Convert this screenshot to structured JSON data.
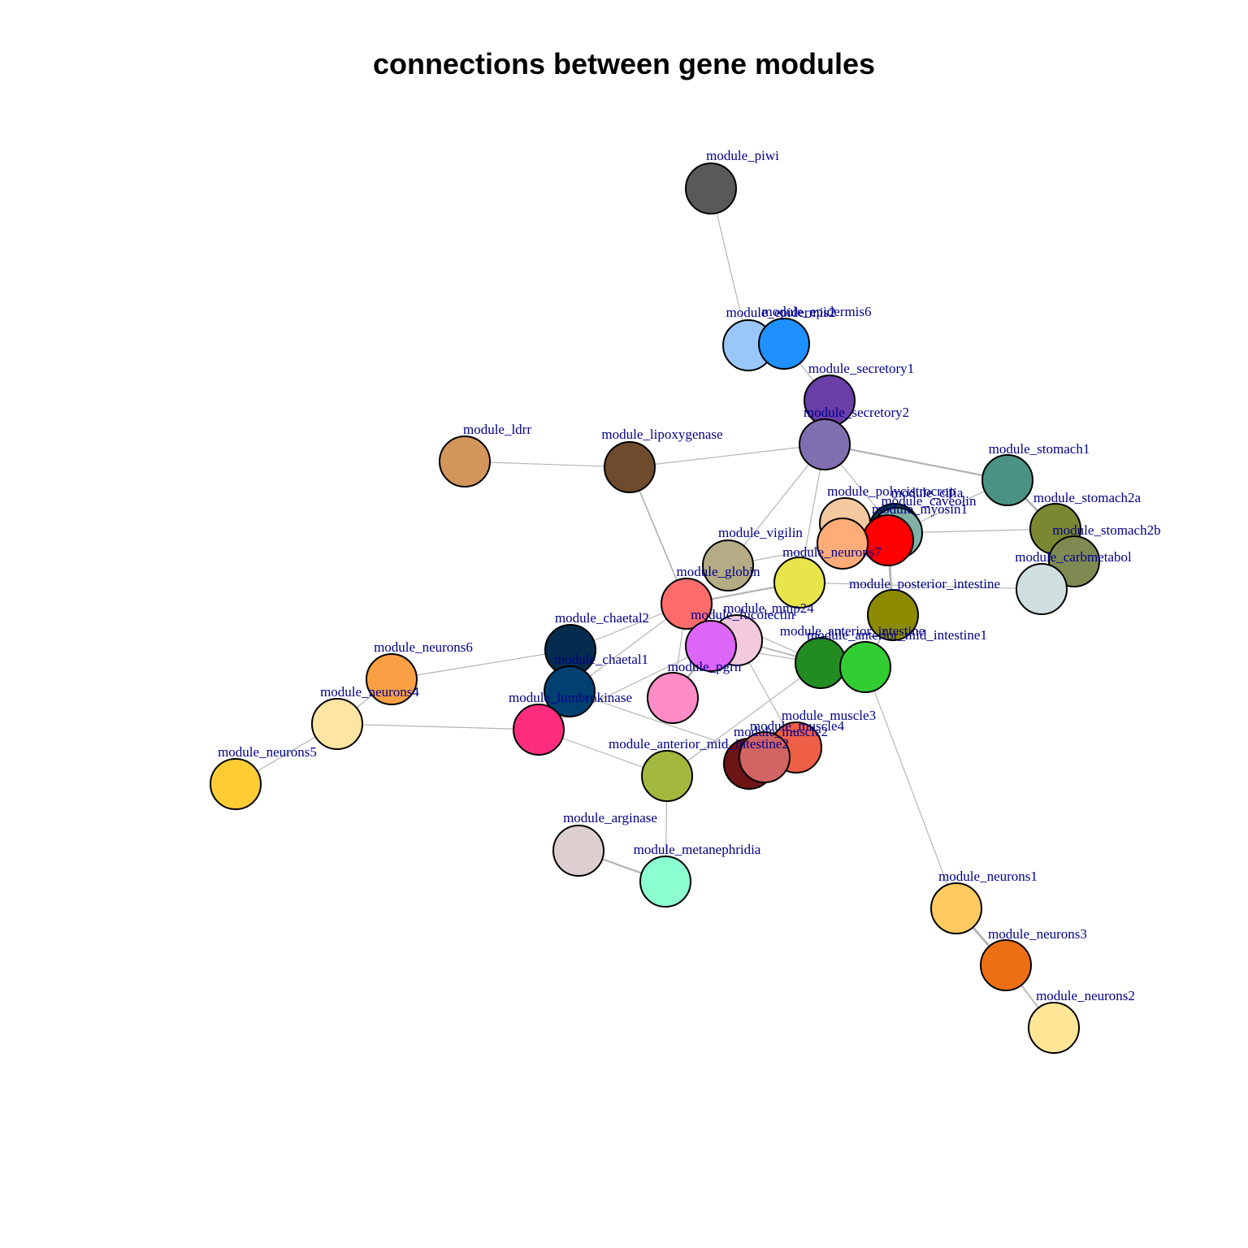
{
  "title": "connections between gene modules",
  "nodes": [
    {
      "id": "piwi",
      "label": "module_piwi",
      "color": "#595959"
    },
    {
      "id": "epidermis2",
      "label": "module_epidermis2",
      "color": "#99c7f9"
    },
    {
      "id": "epidermis6",
      "label": "module_epidermis6",
      "color": "#1e90ff"
    },
    {
      "id": "secretory1",
      "label": "module_secretory1",
      "color": "#6a3fa8"
    },
    {
      "id": "secretory2",
      "label": "module_secretory2",
      "color": "#7f6fb0"
    },
    {
      "id": "ldrr",
      "label": "module_ldrr",
      "color": "#d2955a"
    },
    {
      "id": "lipoxygenase",
      "label": "module_lipoxygenase",
      "color": "#6e4b2c"
    },
    {
      "id": "stomach1",
      "label": "module_stomach1",
      "color": "#4a9283"
    },
    {
      "id": "stomach2a",
      "label": "module_stomach2a",
      "color": "#7b8731"
    },
    {
      "id": "stomach2b",
      "label": "module_stomach2b",
      "color": "#7f8a52"
    },
    {
      "id": "carbmetabol",
      "label": "module_carbmetabol",
      "color": "#d0dfe0"
    },
    {
      "id": "polycistrocrop",
      "label": "module_polycistrocrop",
      "color": "#f6c8a0"
    },
    {
      "id": "cilia",
      "label": "module_cilia",
      "color": "#0a3a4d"
    },
    {
      "id": "caveolin",
      "label": "module_caveolin",
      "color": "#80b0a6"
    },
    {
      "id": "myosin1",
      "label": "module_myosin1",
      "color": "#ff0000"
    },
    {
      "id": "neurons7",
      "label": "module_neurons7",
      "color": "#ffac78"
    },
    {
      "id": "vigilin",
      "label": "module_vigilin",
      "color": "#b5ab85"
    },
    {
      "id": "posterior_intestine",
      "label": "module_posterior_intestine",
      "color": "#e8e54a"
    },
    {
      "id": "globin",
      "label": "module_globin",
      "color": "#fd6b6b"
    },
    {
      "id": "mmp24",
      "label": "module_mmp24",
      "color": "#f2cadb"
    },
    {
      "id": "fucolectin",
      "label": "module_fucolectin",
      "color": "#dd66f8"
    },
    {
      "id": "olive_int",
      "label": "",
      "color": "#8c8a00"
    },
    {
      "id": "anterior_intestine",
      "label": "module_anterior_intestine",
      "color": "#228b22"
    },
    {
      "id": "anterior_mid_intestine1",
      "label": "module_anterior_mid_intestine1",
      "color": "#32cd32"
    },
    {
      "id": "chaetal2",
      "label": "module_chaetal2",
      "color": "#052c4e"
    },
    {
      "id": "chaetal1",
      "label": "module_chaetal1",
      "color": "#014071"
    },
    {
      "id": "pgrn",
      "label": "module_pgrn",
      "color": "#ff8cc6"
    },
    {
      "id": "lumbrokinase",
      "label": "module_lumbrokinase",
      "color": "#fc2d7f"
    },
    {
      "id": "neurons6",
      "label": "module_neurons6",
      "color": "#f9a044"
    },
    {
      "id": "neurons4",
      "label": "module_neurons4",
      "color": "#ffe5a2"
    },
    {
      "id": "neurons5",
      "label": "module_neurons5",
      "color": "#ffcd33"
    },
    {
      "id": "muscle3",
      "label": "module_muscle3",
      "color": "#ef5f45"
    },
    {
      "id": "muscle4",
      "label": "module_muscle4",
      "color": "#6d1515"
    },
    {
      "id": "muscle2",
      "label": "module_muscle2",
      "color": "#d26464"
    },
    {
      "id": "anterior_mid_intestine2",
      "label": "module_anterior_mid_intestine2",
      "color": "#a2b73d"
    },
    {
      "id": "arginase",
      "label": "module_arginase",
      "color": "#ddcfcf"
    },
    {
      "id": "metanephridia",
      "label": "module_metanephridia",
      "color": "#8cffd1"
    },
    {
      "id": "neurons1",
      "label": "module_neurons1",
      "color": "#ffca60"
    },
    {
      "id": "neurons3",
      "label": "module_neurons3",
      "color": "#ed6f14"
    },
    {
      "id": "neurons2",
      "label": "module_neurons2",
      "color": "#ffe697"
    }
  ],
  "edges": [
    {
      "source": "piwi",
      "target": "epidermis2",
      "weight": 1
    },
    {
      "source": "epidermis2",
      "target": "epidermis6",
      "weight": 3
    },
    {
      "source": "epidermis6",
      "target": "secretory1",
      "weight": 1
    },
    {
      "source": "secretory1",
      "target": "secretory2",
      "weight": 2
    },
    {
      "source": "ldrr",
      "target": "lipoxygenase",
      "weight": 1
    },
    {
      "source": "lipoxygenase",
      "target": "secretory2",
      "weight": 1
    },
    {
      "source": "lipoxygenase",
      "target": "globin",
      "weight": 2
    },
    {
      "source": "secretory2",
      "target": "stomach1",
      "weight": 3
    },
    {
      "source": "secretory2",
      "target": "vigilin",
      "weight": 1
    },
    {
      "source": "secretory2",
      "target": "caveolin",
      "weight": 1
    },
    {
      "source": "secretory2",
      "target": "posterior_intestine",
      "weight": 1
    },
    {
      "source": "stomach1",
      "target": "stomach2a",
      "weight": 4
    },
    {
      "source": "stomach2a",
      "target": "stomach2b",
      "weight": 2
    },
    {
      "source": "stomach1",
      "target": "caveolin",
      "weight": 1
    },
    {
      "source": "caveolin",
      "target": "stomach2a",
      "weight": 1
    },
    {
      "source": "myosin1",
      "target": "olive_int",
      "weight": 4
    },
    {
      "source": "olive_int",
      "target": "anterior_mid_intestine1",
      "weight": 2
    },
    {
      "source": "posterior_intestine",
      "target": "carbmetabol",
      "weight": 1
    },
    {
      "source": "posterior_intestine",
      "target": "globin",
      "weight": 3
    },
    {
      "source": "vigilin",
      "target": "neurons7",
      "weight": 1
    },
    {
      "source": "globin",
      "target": "pgrn",
      "weight": 1
    },
    {
      "source": "globin",
      "target": "chaetal2",
      "weight": 1
    },
    {
      "source": "globin",
      "target": "anterior_intestine",
      "weight": 1
    },
    {
      "source": "mmp24",
      "target": "anterior_intestine",
      "weight": 2
    },
    {
      "source": "fucolectin",
      "target": "anterior_intestine",
      "weight": 1
    },
    {
      "source": "fucolectin",
      "target": "pgrn",
      "weight": 4
    },
    {
      "source": "fucolectin",
      "target": "lumbrokinase",
      "weight": 1
    },
    {
      "source": "mmp24",
      "target": "muscle3",
      "weight": 1
    },
    {
      "source": "anterior_intestine",
      "target": "anterior_mid_intestine1",
      "weight": 3
    },
    {
      "source": "anterior_intestine",
      "target": "anterior_mid_intestine2",
      "weight": 1
    },
    {
      "source": "anterior_mid_intestine1",
      "target": "neurons1",
      "weight": 1
    },
    {
      "source": "chaetal2",
      "target": "chaetal1",
      "weight": 2
    },
    {
      "source": "chaetal1",
      "target": "muscle2",
      "weight": 1
    },
    {
      "source": "chaetal1",
      "target": "globin",
      "weight": 1
    },
    {
      "source": "neurons6",
      "target": "chaetal2",
      "weight": 1
    },
    {
      "source": "neurons6",
      "target": "neurons4",
      "weight": 1
    },
    {
      "source": "neurons4",
      "target": "neurons5",
      "weight": 1
    },
    {
      "source": "neurons4",
      "target": "lumbrokinase",
      "weight": 1
    },
    {
      "source": "lumbrokinase",
      "target": "anterior_mid_intestine2",
      "weight": 1
    },
    {
      "source": "muscle3",
      "target": "muscle4",
      "weight": 2
    },
    {
      "source": "muscle4",
      "target": "muscle2",
      "weight": 3
    },
    {
      "source": "anterior_mid_intestine2",
      "target": "metanephridia",
      "weight": 1
    },
    {
      "source": "arginase",
      "target": "metanephridia",
      "weight": 3
    },
    {
      "source": "neurons1",
      "target": "neurons3",
      "weight": 4
    },
    {
      "source": "neurons3",
      "target": "neurons2",
      "weight": 2
    }
  ],
  "colors": {
    "edge": "#b3b3b3",
    "node_border": "#000000",
    "label": "#00008b",
    "background": "#ffffff"
  }
}
